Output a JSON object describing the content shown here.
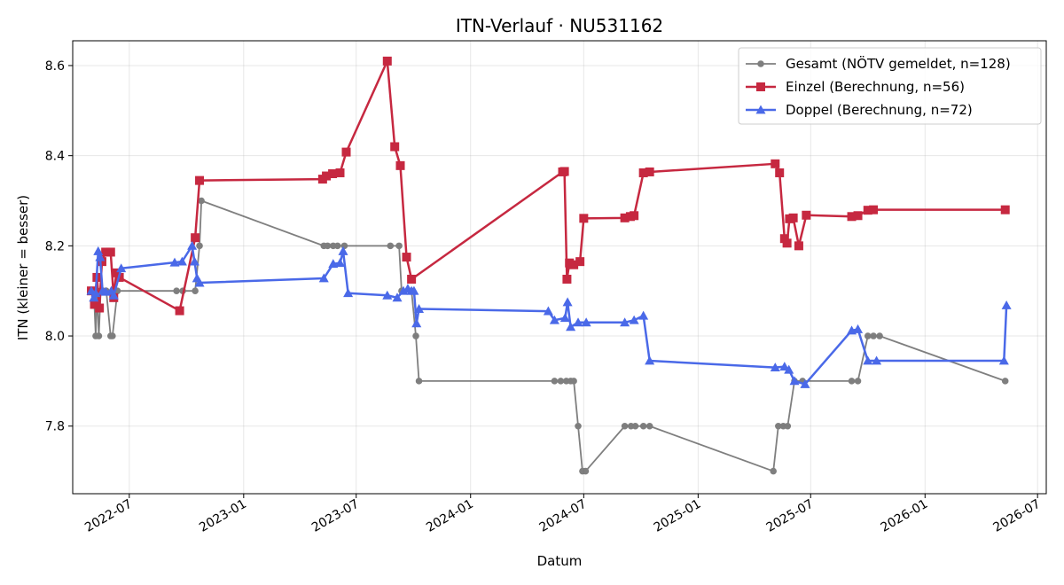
{
  "chart_data": {
    "type": "line",
    "title": "ITN-Verlauf · NU531162",
    "xlabel": "Datum",
    "ylabel": "ITN  (kleiner = besser)",
    "x_axis": "date",
    "xlim": [
      "2022-04-01",
      "2026-07-15"
    ],
    "ylim": [
      7.65,
      8.655
    ],
    "x_ticks": [
      "2022-07",
      "2023-01",
      "2023-07",
      "2024-01",
      "2024-07",
      "2025-01",
      "2025-07",
      "2026-01",
      "2026-07"
    ],
    "y_ticks": [
      "7.8",
      "8.0",
      "8.2",
      "8.4",
      "8.6"
    ],
    "grid": true,
    "legend_position": "top-right",
    "series": [
      {
        "name": "Gesamt (NÖTV gemeldet, n=128)",
        "color": "#555555",
        "marker": "circle",
        "points": [
          [
            "2022-05-01",
            8.1
          ],
          [
            "2022-05-05",
            8.1
          ],
          [
            "2022-05-08",
            8.0
          ],
          [
            "2022-05-10",
            8.1
          ],
          [
            "2022-05-13",
            8.0
          ],
          [
            "2022-05-16",
            8.1
          ],
          [
            "2022-05-20",
            8.1
          ],
          [
            "2022-05-25",
            8.1
          ],
          [
            "2022-06-01",
            8.0
          ],
          [
            "2022-06-04",
            8.0
          ],
          [
            "2022-06-12",
            8.1
          ],
          [
            "2022-09-15",
            8.1
          ],
          [
            "2022-09-25",
            8.1
          ],
          [
            "2022-10-15",
            8.1
          ],
          [
            "2022-10-22",
            8.2
          ],
          [
            "2022-10-25",
            8.3
          ],
          [
            "2023-05-10",
            8.2
          ],
          [
            "2023-05-16",
            8.2
          ],
          [
            "2023-05-25",
            8.2
          ],
          [
            "2023-06-01",
            8.2
          ],
          [
            "2023-06-12",
            8.2
          ],
          [
            "2023-08-25",
            8.2
          ],
          [
            "2023-09-08",
            8.2
          ],
          [
            "2023-09-12",
            8.1
          ],
          [
            "2023-09-28",
            8.1
          ],
          [
            "2023-10-05",
            8.0
          ],
          [
            "2023-10-10",
            7.9
          ],
          [
            "2024-05-15",
            7.9
          ],
          [
            "2024-05-25",
            7.9
          ],
          [
            "2024-06-03",
            7.9
          ],
          [
            "2024-06-10",
            7.9
          ],
          [
            "2024-06-15",
            7.9
          ],
          [
            "2024-06-22",
            7.8
          ],
          [
            "2024-06-29",
            7.7
          ],
          [
            "2024-07-04",
            7.7
          ],
          [
            "2024-09-05",
            7.8
          ],
          [
            "2024-09-15",
            7.8
          ],
          [
            "2024-09-22",
            7.8
          ],
          [
            "2024-10-05",
            7.8
          ],
          [
            "2024-10-15",
            7.8
          ],
          [
            "2025-05-02",
            7.7
          ],
          [
            "2025-05-10",
            7.8
          ],
          [
            "2025-05-18",
            7.8
          ],
          [
            "2025-05-25",
            7.8
          ],
          [
            "2025-06-05",
            7.9
          ],
          [
            "2025-06-18",
            7.9
          ],
          [
            "2025-09-05",
            7.9
          ],
          [
            "2025-09-15",
            7.9
          ],
          [
            "2025-10-01",
            8.0
          ],
          [
            "2025-10-10",
            8.0
          ],
          [
            "2025-10-20",
            8.0
          ],
          [
            "2026-05-10",
            7.9
          ]
        ]
      },
      {
        "name": "Einzel (Berechnung, n=56)",
        "color": "#c62840",
        "marker": "square",
        "points": [
          [
            "2022-05-01",
            8.1
          ],
          [
            "2022-05-06",
            8.07
          ],
          [
            "2022-05-10",
            8.13
          ],
          [
            "2022-05-14",
            8.062
          ],
          [
            "2022-05-18",
            8.165
          ],
          [
            "2022-05-24",
            8.186
          ],
          [
            "2022-06-01",
            8.186
          ],
          [
            "2022-06-06",
            8.085
          ],
          [
            "2022-06-10",
            8.14
          ],
          [
            "2022-06-15",
            8.13
          ],
          [
            "2022-09-20",
            8.056
          ],
          [
            "2022-10-15",
            8.218
          ],
          [
            "2022-10-22",
            8.345
          ],
          [
            "2023-05-08",
            8.348
          ],
          [
            "2023-05-14",
            8.355
          ],
          [
            "2023-05-24",
            8.36
          ],
          [
            "2023-06-05",
            8.362
          ],
          [
            "2023-06-15",
            8.408
          ],
          [
            "2023-08-20",
            8.61
          ],
          [
            "2023-09-01",
            8.42
          ],
          [
            "2023-09-10",
            8.378
          ],
          [
            "2023-09-20",
            8.175
          ],
          [
            "2023-09-28",
            8.126
          ],
          [
            "2024-05-28",
            8.364
          ],
          [
            "2024-05-31",
            8.365
          ],
          [
            "2024-06-04",
            8.126
          ],
          [
            "2024-06-08",
            8.162
          ],
          [
            "2024-06-15",
            8.158
          ],
          [
            "2024-06-25",
            8.165
          ],
          [
            "2024-07-01",
            8.261
          ],
          [
            "2024-09-05",
            8.262
          ],
          [
            "2024-09-14",
            8.265
          ],
          [
            "2024-09-20",
            8.267
          ],
          [
            "2024-10-05",
            8.362
          ],
          [
            "2024-10-15",
            8.364
          ],
          [
            "2025-05-05",
            8.382
          ],
          [
            "2025-05-12",
            8.362
          ],
          [
            "2025-05-20",
            8.216
          ],
          [
            "2025-05-24",
            8.206
          ],
          [
            "2025-05-28",
            8.26
          ],
          [
            "2025-06-03",
            8.262
          ],
          [
            "2025-06-12",
            8.2
          ],
          [
            "2025-06-24",
            8.268
          ],
          [
            "2025-09-05",
            8.265
          ],
          [
            "2025-09-15",
            8.267
          ],
          [
            "2025-10-01",
            8.279
          ],
          [
            "2025-10-10",
            8.28
          ],
          [
            "2026-05-10",
            8.28
          ]
        ]
      },
      {
        "name": "Doppel (Berechnung, n=72)",
        "color": "#4a69e8",
        "marker": "triangle",
        "points": [
          [
            "2022-05-01",
            8.1
          ],
          [
            "2022-05-05",
            8.085
          ],
          [
            "2022-05-08",
            8.095
          ],
          [
            "2022-05-12",
            8.188
          ],
          [
            "2022-05-15",
            8.175
          ],
          [
            "2022-05-19",
            8.1
          ],
          [
            "2022-05-24",
            8.098
          ],
          [
            "2022-06-02",
            8.1
          ],
          [
            "2022-06-06",
            8.09
          ],
          [
            "2022-06-18",
            8.15
          ],
          [
            "2022-09-12",
            8.163
          ],
          [
            "2022-09-24",
            8.165
          ],
          [
            "2022-10-10",
            8.2
          ],
          [
            "2022-10-14",
            8.165
          ],
          [
            "2022-10-18",
            8.128
          ],
          [
            "2022-10-22",
            8.118
          ],
          [
            "2023-05-10",
            8.128
          ],
          [
            "2023-05-25",
            8.16
          ],
          [
            "2023-06-05",
            8.162
          ],
          [
            "2023-06-10",
            8.188
          ],
          [
            "2023-06-18",
            8.095
          ],
          [
            "2023-08-20",
            8.09
          ],
          [
            "2023-09-05",
            8.085
          ],
          [
            "2023-09-15",
            8.1
          ],
          [
            "2023-09-22",
            8.105
          ],
          [
            "2023-09-28",
            8.1
          ],
          [
            "2023-10-02",
            8.1
          ],
          [
            "2023-10-06",
            8.028
          ],
          [
            "2023-10-10",
            8.06
          ],
          [
            "2024-05-05",
            8.055
          ],
          [
            "2024-05-15",
            8.035
          ],
          [
            "2024-06-01",
            8.04
          ],
          [
            "2024-06-05",
            8.075
          ],
          [
            "2024-06-10",
            8.02
          ],
          [
            "2024-06-22",
            8.03
          ],
          [
            "2024-07-05",
            8.03
          ],
          [
            "2024-09-05",
            8.03
          ],
          [
            "2024-09-20",
            8.035
          ],
          [
            "2024-10-05",
            8.045
          ],
          [
            "2024-10-15",
            7.945
          ],
          [
            "2025-05-05",
            7.93
          ],
          [
            "2025-05-20",
            7.932
          ],
          [
            "2025-05-27",
            7.925
          ],
          [
            "2025-06-05",
            7.9
          ],
          [
            "2025-06-22",
            7.893
          ],
          [
            "2025-09-05",
            8.012
          ],
          [
            "2025-09-15",
            8.015
          ],
          [
            "2025-10-01",
            7.945
          ],
          [
            "2025-10-15",
            7.945
          ],
          [
            "2026-05-08",
            7.945
          ],
          [
            "2026-05-12",
            8.068
          ]
        ]
      }
    ]
  }
}
